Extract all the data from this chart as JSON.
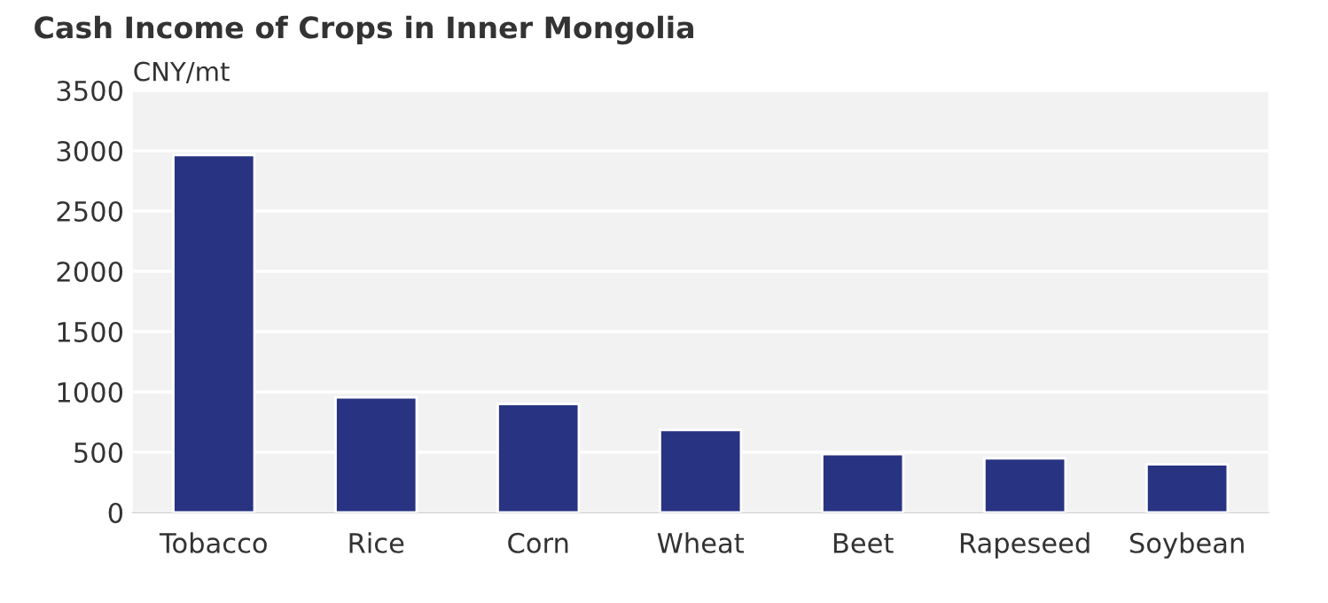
{
  "chart_data": {
    "type": "bar",
    "title": "Cash Income of Crops in Inner Mongolia",
    "ylabel": "CNY/mt",
    "categories": [
      "Tobacco",
      "Rice",
      "Corn",
      "Wheat",
      "Beet",
      "Rapeseed",
      "Soybean"
    ],
    "values": [
      2965,
      955,
      900,
      685,
      485,
      450,
      400
    ],
    "color": "#283382",
    "ylim": [
      0,
      3500
    ],
    "yticks": [
      0,
      500,
      1000,
      1500,
      2000,
      2500,
      3000,
      3500
    ],
    "grid": "y"
  }
}
